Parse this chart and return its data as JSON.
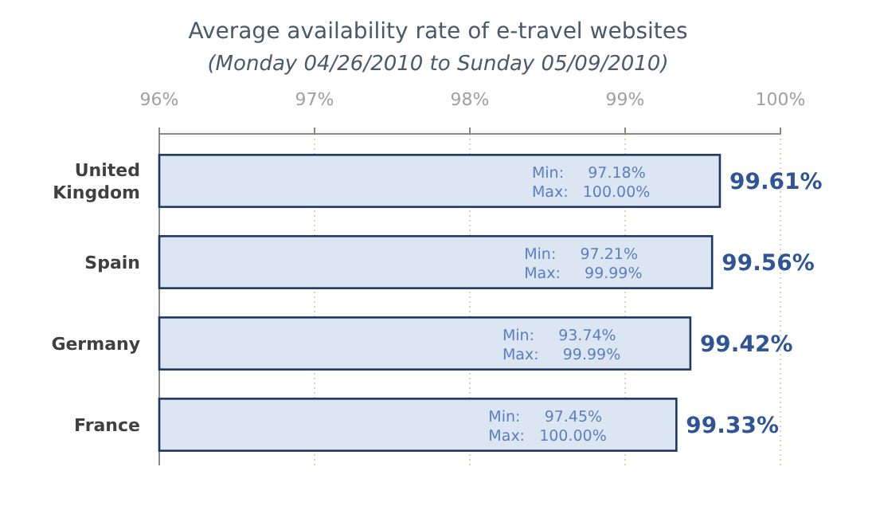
{
  "chart_data": {
    "type": "bar",
    "orientation": "horizontal",
    "title": "Average availability rate of e-travel websites",
    "subtitle": "(Monday 04/26/2010 to Sunday 05/09/2010)",
    "categories": [
      "United Kingdom",
      "Spain",
      "Germany",
      "France"
    ],
    "values": [
      99.61,
      99.56,
      99.42,
      99.33
    ],
    "value_labels": [
      "99.61%",
      "99.56%",
      "99.42%",
      "99.33%"
    ],
    "color": "#dce6f2",
    "xlim": [
      96,
      100
    ],
    "xticks": [
      {
        "value": 96,
        "label": "96%"
      },
      {
        "value": 97,
        "label": "97%"
      },
      {
        "value": 98,
        "label": "98%"
      },
      {
        "value": 99,
        "label": "99%"
      },
      {
        "value": 100,
        "label": "100%"
      }
    ],
    "grid": "x",
    "annotations": [
      "Min:     97.18%",
      "Max:   100.00%",
      "Min:     97.21%",
      "Max:     99.99%",
      "Min:     93.74%",
      "Max:     99.99%",
      "Min:     97.45%",
      "Max:   100.00%"
    ]
  }
}
